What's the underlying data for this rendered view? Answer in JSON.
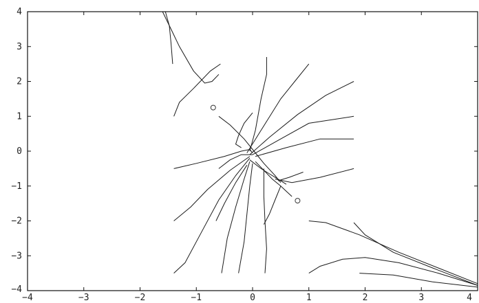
{
  "chart_data": {
    "type": "line",
    "title": "",
    "xlabel": "",
    "ylabel": "",
    "xlim": [
      -4,
      4
    ],
    "ylim": [
      -4,
      4
    ],
    "grid": false,
    "xticks": [
      -4,
      -3,
      -2,
      -1,
      0,
      1,
      2,
      3,
      4
    ],
    "yticks": [
      -4,
      -3,
      -2,
      -1,
      0,
      1,
      2,
      3,
      4
    ],
    "xtick_labels": [
      "−4",
      "−3",
      "−2",
      "−1",
      "0",
      "1",
      "2",
      "3",
      "4"
    ],
    "ytick_labels": [
      "−4",
      "−3",
      "−2",
      "−1",
      "0",
      "1",
      "2",
      "3",
      "4"
    ],
    "markers": [
      {
        "x": -0.7,
        "y": 1.25,
        "symbol": "circle"
      },
      {
        "x": 0.8,
        "y": -1.42,
        "symbol": "circle"
      }
    ],
    "series": [
      {
        "points": [
          [
            -1.6,
            4.0
          ],
          [
            -1.45,
            3.5
          ],
          [
            -1.3,
            3.0
          ],
          [
            -1.05,
            2.3
          ],
          [
            -0.85,
            1.95
          ],
          [
            -0.72,
            2.0
          ],
          [
            -0.6,
            2.2
          ]
        ]
      },
      {
        "points": [
          [
            -1.55,
            4.0
          ],
          [
            -1.48,
            3.6
          ],
          [
            -1.45,
            3.1
          ],
          [
            -1.42,
            2.5
          ]
        ]
      },
      {
        "points": [
          [
            -0.57,
            2.5
          ],
          [
            -0.75,
            2.3
          ],
          [
            -1.05,
            1.8
          ],
          [
            -1.3,
            1.4
          ],
          [
            -1.4,
            1.0
          ]
        ]
      },
      {
        "points": [
          [
            -0.6,
            1.0
          ],
          [
            -0.4,
            0.75
          ],
          [
            -0.15,
            0.35
          ],
          [
            0.05,
            -0.05
          ],
          [
            0.2,
            -0.35
          ],
          [
            0.4,
            -0.7
          ],
          [
            0.5,
            -0.9
          ]
        ]
      },
      {
        "points": [
          [
            -0.05,
            -0.25
          ],
          [
            0.15,
            -0.5
          ],
          [
            0.3,
            -0.65
          ],
          [
            0.45,
            -0.8
          ],
          [
            0.6,
            -0.95
          ]
        ]
      },
      {
        "points": [
          [
            0.05,
            -0.3
          ],
          [
            0.2,
            -0.55
          ],
          [
            0.35,
            -0.8
          ],
          [
            0.5,
            -1.0
          ],
          [
            0.6,
            -1.15
          ],
          [
            0.7,
            -1.3
          ]
        ]
      },
      {
        "points": [
          [
            -1.4,
            -0.5
          ],
          [
            -1.0,
            -0.35
          ],
          [
            -0.5,
            -0.15
          ],
          [
            -0.2,
            0.0
          ],
          [
            -0.05,
            0.05
          ],
          [
            0.0,
            -0.05
          ]
        ]
      },
      {
        "points": [
          [
            -0.6,
            -0.5
          ],
          [
            -0.4,
            -0.25
          ],
          [
            -0.2,
            -0.1
          ],
          [
            0.0,
            -0.1
          ]
        ]
      },
      {
        "points": [
          [
            -0.2,
            0.1
          ],
          [
            -0.3,
            0.2
          ],
          [
            -0.25,
            0.45
          ],
          [
            -0.15,
            0.8
          ],
          [
            0.0,
            1.1
          ]
        ]
      },
      {
        "points": [
          [
            -0.05,
            0.0
          ],
          [
            0.05,
            0.6
          ],
          [
            0.15,
            1.5
          ],
          [
            0.25,
            2.2
          ],
          [
            0.25,
            2.7
          ]
        ]
      },
      {
        "points": [
          [
            -0.1,
            -0.05
          ],
          [
            0.15,
            0.6
          ],
          [
            0.5,
            1.5
          ],
          [
            0.75,
            2.0
          ],
          [
            1.0,
            2.5
          ]
        ]
      },
      {
        "points": [
          [
            -0.05,
            -0.1
          ],
          [
            0.3,
            0.4
          ],
          [
            0.8,
            1.05
          ],
          [
            1.3,
            1.6
          ],
          [
            1.8,
            2.0
          ]
        ]
      },
      {
        "points": [
          [
            0.0,
            -0.1
          ],
          [
            0.5,
            0.35
          ],
          [
            1.0,
            0.8
          ],
          [
            1.8,
            1.0
          ]
        ]
      },
      {
        "points": [
          [
            0.05,
            -0.15
          ],
          [
            0.6,
            0.1
          ],
          [
            1.2,
            0.35
          ],
          [
            1.8,
            0.35
          ]
        ]
      },
      {
        "points": [
          [
            0.4,
            -0.8
          ],
          [
            0.7,
            -0.9
          ],
          [
            1.2,
            -0.75
          ],
          [
            1.8,
            -0.5
          ]
        ]
      },
      {
        "points": [
          [
            0.45,
            -0.85
          ],
          [
            0.65,
            -0.75
          ],
          [
            0.9,
            -0.6
          ]
        ]
      },
      {
        "points": [
          [
            -0.05,
            -0.15
          ],
          [
            -0.4,
            -0.55
          ],
          [
            -0.8,
            -1.1
          ],
          [
            -1.1,
            -1.6
          ],
          [
            -1.4,
            -2.0
          ]
        ]
      },
      {
        "points": [
          [
            -0.05,
            -0.2
          ],
          [
            -0.3,
            -0.7
          ],
          [
            -0.6,
            -1.4
          ],
          [
            -0.9,
            -2.3
          ],
          [
            -1.2,
            -3.2
          ],
          [
            -1.4,
            -3.5
          ]
        ]
      },
      {
        "points": [
          [
            -0.1,
            -0.4
          ],
          [
            -0.3,
            -0.9
          ],
          [
            -0.5,
            -1.5
          ],
          [
            -0.65,
            -2.0
          ]
        ]
      },
      {
        "points": [
          [
            -0.05,
            -0.3
          ],
          [
            -0.15,
            -0.8
          ],
          [
            -0.3,
            -1.6
          ],
          [
            -0.45,
            -2.5
          ],
          [
            -0.55,
            -3.5
          ]
        ]
      },
      {
        "points": [
          [
            0.0,
            -0.35
          ],
          [
            -0.05,
            -1.0
          ],
          [
            -0.1,
            -1.8
          ],
          [
            -0.15,
            -2.6
          ],
          [
            -0.25,
            -3.5
          ]
        ]
      },
      {
        "points": [
          [
            0.2,
            -0.5
          ],
          [
            0.2,
            -1.3
          ],
          [
            0.22,
            -2.0
          ],
          [
            0.25,
            -2.8
          ],
          [
            0.22,
            -3.5
          ]
        ]
      },
      {
        "points": [
          [
            0.5,
            -1.0
          ],
          [
            0.4,
            -1.4
          ],
          [
            0.3,
            -1.8
          ],
          [
            0.2,
            -2.1
          ]
        ]
      },
      {
        "points": [
          [
            1.0,
            -2.0
          ],
          [
            1.3,
            -2.05
          ],
          [
            1.9,
            -2.4
          ],
          [
            2.6,
            -2.9
          ],
          [
            3.3,
            -3.35
          ],
          [
            4.0,
            -3.8
          ]
        ]
      },
      {
        "points": [
          [
            1.8,
            -2.05
          ],
          [
            2.0,
            -2.4
          ],
          [
            2.5,
            -2.9
          ],
          [
            3.2,
            -3.35
          ],
          [
            4.0,
            -3.85
          ]
        ]
      },
      {
        "points": [
          [
            1.0,
            -3.5
          ],
          [
            1.2,
            -3.3
          ],
          [
            1.6,
            -3.1
          ],
          [
            2.0,
            -3.05
          ],
          [
            2.6,
            -3.2
          ],
          [
            3.3,
            -3.5
          ],
          [
            4.0,
            -3.85
          ]
        ]
      },
      {
        "points": [
          [
            1.9,
            -3.5
          ],
          [
            2.5,
            -3.55
          ],
          [
            3.2,
            -3.75
          ],
          [
            4.0,
            -3.9
          ]
        ]
      }
    ]
  }
}
